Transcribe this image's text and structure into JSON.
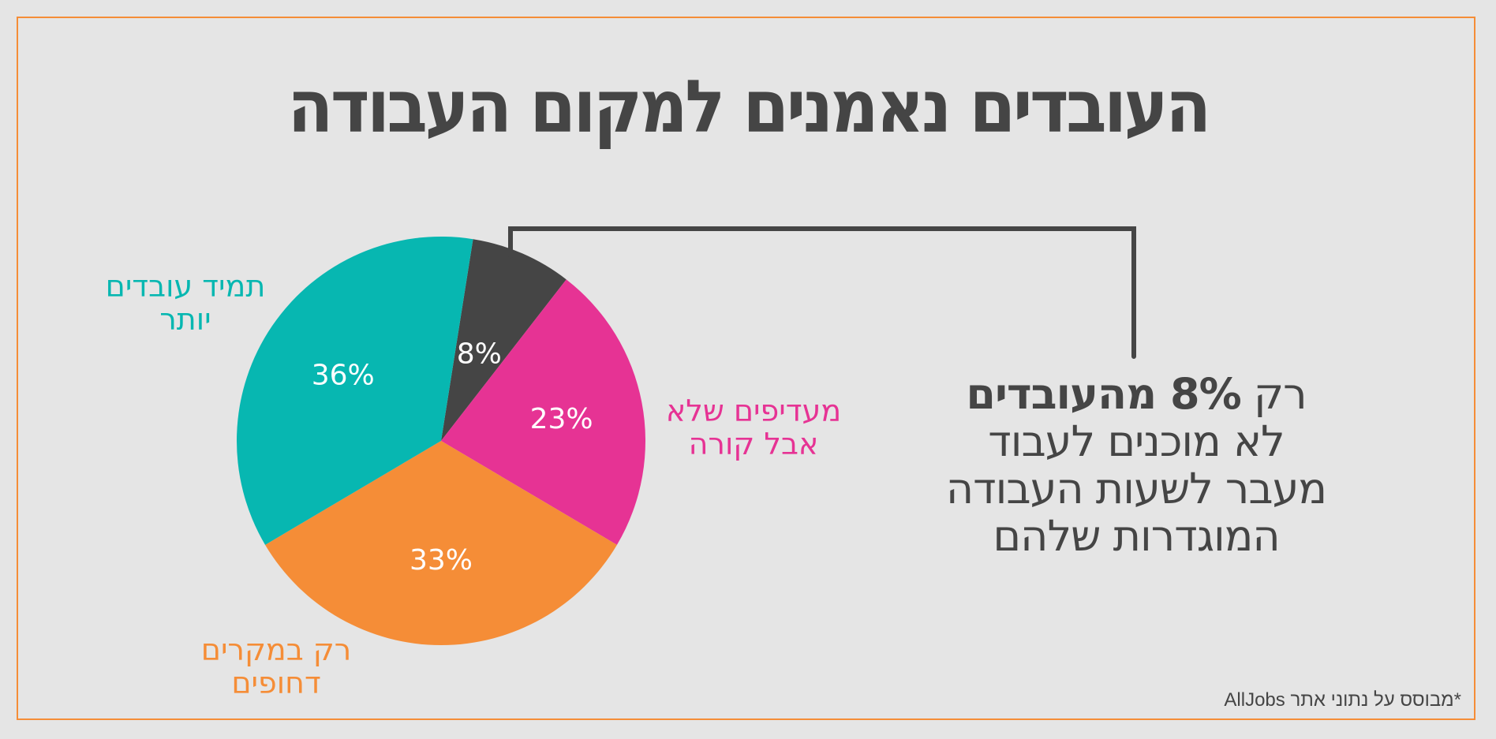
{
  "title": "העובדים נאמנים למקום העבודה",
  "colors": {
    "background": "#e5e5e5",
    "frame": "#f58d37",
    "text": "#454545",
    "teal": "#07b7b1",
    "dark": "#454545",
    "pink": "#e63394",
    "orange": "#f58d37"
  },
  "labels": {
    "teal": [
      "תמיד עובדים",
      "יותר"
    ],
    "pink": [
      "מעדיפים שלא",
      "אבל קורה"
    ],
    "orange": [
      "רק במקרים",
      "דחופים"
    ]
  },
  "callout": {
    "line1_prefix": "רק ",
    "line1_bold": "8% מהעובדים",
    "line2": "לא מוכנים לעבוד",
    "line3": "מעבר לשעות העבודה",
    "line4": "המוגדרות שלהם"
  },
  "source": "*מבוסס על נתוני אתר AllJobs",
  "chart_data": {
    "type": "pie",
    "title": "העובדים נאמנים למקום העבודה",
    "categories": [
      "לא מוכנים לעבוד מעבר לשעות",
      "מעדיפים שלא אבל קורה",
      "רק במקרים דחופים",
      "תמיד עובדים יותר"
    ],
    "values": [
      8,
      23,
      33,
      36
    ],
    "value_labels": [
      "8%",
      "23%",
      "33%",
      "36%"
    ],
    "colors": [
      "#454545",
      "#e63394",
      "#f58d37",
      "#07b7b1"
    ],
    "start_angle_deg": -81,
    "direction": "clockwise",
    "annotation": "רק 8% מהעובדים לא מוכנים לעבוד מעבר לשעות העבודה המוגדרות שלהם",
    "source": "*מבוסס על נתוני אתר AllJobs"
  }
}
